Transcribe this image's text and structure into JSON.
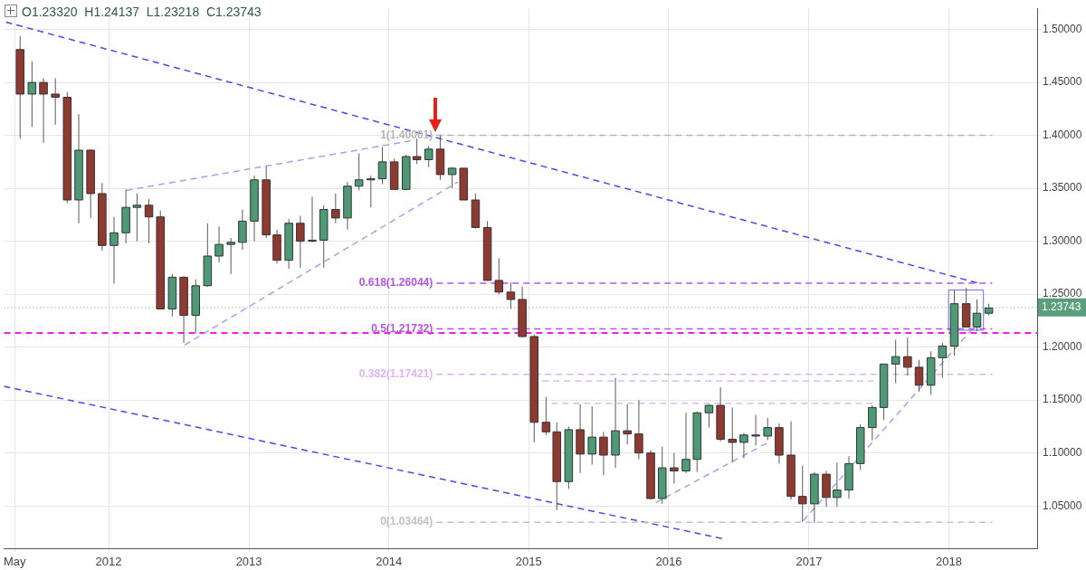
{
  "chart_data": {
    "type": "candlestick",
    "x": [
      "2011-05-15",
      "2011-06-15",
      "2011-07-15",
      "2011-08-15",
      "2011-09-15",
      "2011-10-15",
      "2011-11-15",
      "2011-12-15",
      "2012-01-15",
      "2012-02-15",
      "2012-03-15",
      "2012-04-15",
      "2012-05-15",
      "2012-06-15",
      "2012-07-15",
      "2012-08-15",
      "2012-09-15",
      "2012-10-15",
      "2012-11-15",
      "2012-12-15",
      "2013-01-15",
      "2013-02-15",
      "2013-03-15",
      "2013-04-15",
      "2013-05-15",
      "2013-06-15",
      "2013-07-15",
      "2013-08-15",
      "2013-09-15",
      "2013-10-15",
      "2013-11-15",
      "2013-12-15",
      "2014-01-15",
      "2014-02-15",
      "2014-03-15",
      "2014-04-15",
      "2014-05-15",
      "2014-06-15",
      "2014-07-15",
      "2014-08-15",
      "2014-09-15",
      "2014-10-15",
      "2014-11-15",
      "2014-12-15",
      "2015-01-15",
      "2015-02-15",
      "2015-03-15",
      "2015-04-15",
      "2015-05-15",
      "2015-06-15",
      "2015-07-15",
      "2015-08-15",
      "2015-09-15",
      "2015-10-15",
      "2015-11-15",
      "2015-12-15",
      "2016-01-15",
      "2016-02-15",
      "2016-03-15",
      "2016-04-15",
      "2016-05-15",
      "2016-06-15",
      "2016-07-15",
      "2016-08-15",
      "2016-09-15",
      "2016-10-15",
      "2016-11-15",
      "2016-12-15",
      "2017-01-15",
      "2017-02-15",
      "2017-03-15",
      "2017-04-15",
      "2017-05-15",
      "2017-06-15",
      "2017-07-15",
      "2017-08-15",
      "2017-09-15",
      "2017-10-15",
      "2017-11-15",
      "2017-12-15",
      "2018-01-15",
      "2018-02-15",
      "2018-03-15",
      "2018-04-15"
    ],
    "ohlc": [
      [
        1.481,
        1.494,
        1.397,
        1.439
      ],
      [
        1.439,
        1.47,
        1.408,
        1.45
      ],
      [
        1.45,
        1.454,
        1.393,
        1.439
      ],
      [
        1.439,
        1.454,
        1.41,
        1.436
      ],
      [
        1.436,
        1.441,
        1.336,
        1.339
      ],
      [
        1.339,
        1.42,
        1.317,
        1.386
      ],
      [
        1.386,
        1.387,
        1.322,
        1.345
      ],
      [
        1.345,
        1.355,
        1.291,
        1.296
      ],
      [
        1.296,
        1.323,
        1.26,
        1.308
      ],
      [
        1.308,
        1.349,
        1.298,
        1.332
      ],
      [
        1.332,
        1.345,
        1.3,
        1.334
      ],
      [
        1.334,
        1.34,
        1.298,
        1.323
      ],
      [
        1.323,
        1.329,
        1.236,
        1.236
      ],
      [
        1.236,
        1.269,
        1.229,
        1.266
      ],
      [
        1.266,
        1.267,
        1.204,
        1.23
      ],
      [
        1.23,
        1.264,
        1.213,
        1.258
      ],
      [
        1.258,
        1.317,
        1.257,
        1.286
      ],
      [
        1.286,
        1.314,
        1.28,
        1.297
      ],
      [
        1.297,
        1.303,
        1.269,
        1.299
      ],
      [
        1.299,
        1.33,
        1.292,
        1.319
      ],
      [
        1.319,
        1.362,
        1.3,
        1.358
      ],
      [
        1.358,
        1.371,
        1.303,
        1.306
      ],
      [
        1.306,
        1.311,
        1.279,
        1.282
      ],
      [
        1.282,
        1.321,
        1.274,
        1.317
      ],
      [
        1.317,
        1.324,
        1.275,
        1.3
      ],
      [
        1.3,
        1.342,
        1.299,
        1.301
      ],
      [
        1.301,
        1.334,
        1.275,
        1.33
      ],
      [
        1.33,
        1.345,
        1.317,
        1.322
      ],
      [
        1.322,
        1.356,
        1.311,
        1.352
      ],
      [
        1.352,
        1.383,
        1.348,
        1.358
      ],
      [
        1.358,
        1.362,
        1.332,
        1.359
      ],
      [
        1.359,
        1.389,
        1.354,
        1.375
      ],
      [
        1.375,
        1.378,
        1.349,
        1.349
      ],
      [
        1.349,
        1.382,
        1.348,
        1.38
      ],
      [
        1.38,
        1.397,
        1.373,
        1.377
      ],
      [
        1.377,
        1.39,
        1.37,
        1.387
      ],
      [
        1.387,
        1.4,
        1.358,
        1.363
      ],
      [
        1.363,
        1.37,
        1.35,
        1.369
      ],
      [
        1.369,
        1.369,
        1.339,
        1.339
      ],
      [
        1.339,
        1.345,
        1.312,
        1.313
      ],
      [
        1.313,
        1.319,
        1.263,
        1.263
      ],
      [
        1.263,
        1.284,
        1.25,
        1.252
      ],
      [
        1.252,
        1.261,
        1.236,
        1.245
      ],
      [
        1.245,
        1.257,
        1.209,
        1.21
      ],
      [
        1.21,
        1.212,
        1.11,
        1.129
      ],
      [
        1.129,
        1.153,
        1.117,
        1.12
      ],
      [
        1.12,
        1.129,
        1.046,
        1.073
      ],
      [
        1.073,
        1.125,
        1.066,
        1.122
      ],
      [
        1.122,
        1.146,
        1.081,
        1.099
      ],
      [
        1.099,
        1.144,
        1.089,
        1.115
      ],
      [
        1.115,
        1.12,
        1.079,
        1.098
      ],
      [
        1.098,
        1.171,
        1.086,
        1.121
      ],
      [
        1.121,
        1.146,
        1.108,
        1.118
      ],
      [
        1.118,
        1.15,
        1.094,
        1.1
      ],
      [
        1.1,
        1.103,
        1.056,
        1.057
      ],
      [
        1.057,
        1.106,
        1.052,
        1.086
      ],
      [
        1.086,
        1.1,
        1.071,
        1.083
      ],
      [
        1.083,
        1.138,
        1.081,
        1.094
      ],
      [
        1.094,
        1.139,
        1.082,
        1.138
      ],
      [
        1.138,
        1.146,
        1.124,
        1.145
      ],
      [
        1.145,
        1.162,
        1.111,
        1.113
      ],
      [
        1.113,
        1.143,
        1.091,
        1.11
      ],
      [
        1.11,
        1.119,
        1.095,
        1.117
      ],
      [
        1.117,
        1.136,
        1.107,
        1.116
      ],
      [
        1.116,
        1.133,
        1.112,
        1.124
      ],
      [
        1.124,
        1.128,
        1.09,
        1.098
      ],
      [
        1.098,
        1.13,
        1.056,
        1.059
      ],
      [
        1.059,
        1.088,
        1.035,
        1.052
      ],
      [
        1.052,
        1.082,
        1.034,
        1.08
      ],
      [
        1.08,
        1.083,
        1.049,
        1.058
      ],
      [
        1.058,
        1.091,
        1.049,
        1.065
      ],
      [
        1.065,
        1.097,
        1.057,
        1.09
      ],
      [
        1.09,
        1.127,
        1.084,
        1.124
      ],
      [
        1.124,
        1.145,
        1.112,
        1.143
      ],
      [
        1.143,
        1.184,
        1.131,
        1.184
      ],
      [
        1.184,
        1.207,
        1.166,
        1.191
      ],
      [
        1.191,
        1.209,
        1.173,
        1.181
      ],
      [
        1.181,
        1.188,
        1.158,
        1.164
      ],
      [
        1.164,
        1.196,
        1.155,
        1.19
      ],
      [
        1.19,
        1.204,
        1.171,
        1.201
      ],
      [
        1.201,
        1.254,
        1.192,
        1.241
      ],
      [
        1.241,
        1.256,
        1.219,
        1.219
      ],
      [
        1.219,
        1.245,
        1.215,
        1.232
      ],
      [
        1.232,
        1.241,
        1.23,
        1.237
      ]
    ],
    "colors": [
      "#8e3a31",
      "#4f9a76",
      "#8e3a31",
      "#8e3a31",
      "#8e3a31",
      "#4f9a76",
      "#8e3a31",
      "#8e3a31",
      "#4f9a76",
      "#4f9a76",
      "#4f9a76",
      "#8e3a31",
      "#8e3a31",
      "#4f9a76",
      "#8e3a31",
      "#4f9a76",
      "#4f9a76",
      "#4f9a76",
      "#4f9a76",
      "#4f9a76",
      "#4f9a76",
      "#8e3a31",
      "#8e3a31",
      "#4f9a76",
      "#8e3a31",
      "#4f9a76",
      "#4f9a76",
      "#8e3a31",
      "#4f9a76",
      "#4f9a76",
      "#4f9a76",
      "#4f9a76",
      "#8e3a31",
      "#4f9a76",
      "#8e3a31",
      "#4f9a76",
      "#8e3a31",
      "#4f9a76",
      "#8e3a31",
      "#8e3a31",
      "#8e3a31",
      "#8e3a31",
      "#8e3a31",
      "#8e3a31",
      "#8e3a31",
      "#8e3a31",
      "#8e3a31",
      "#4f9a76",
      "#8e3a31",
      "#4f9a76",
      "#8e3a31",
      "#4f9a76",
      "#8e3a31",
      "#8e3a31",
      "#8e3a31",
      "#4f9a76",
      "#8e3a31",
      "#4f9a76",
      "#4f9a76",
      "#4f9a76",
      "#8e3a31",
      "#8e3a31",
      "#4f9a76",
      "#8e3a31",
      "#4f9a76",
      "#8e3a31",
      "#8e3a31",
      "#8e3a31",
      "#4f9a76",
      "#8e3a31",
      "#4f9a76",
      "#4f9a76",
      "#4f9a76",
      "#4f9a76",
      "#4f9a76",
      "#4f9a76",
      "#8e3a31",
      "#8e3a31",
      "#4f9a76",
      "#4f9a76",
      "#4f9a76",
      "#8e3a31",
      "#4f9a76",
      "#4f9a76"
    ],
    "series": [
      {
        "type": "line",
        "color": "#4a4ae8",
        "line_style": "dashed",
        "x": [
          "2011-04-08",
          "2018-03-23"
        ],
        "values": [
          1.507,
          1.26
        ]
      },
      {
        "type": "line",
        "color": "#4a4ae8",
        "line_style": "dashed",
        "x": [
          "2011-04-03",
          "2016-05-21"
        ],
        "values": [
          1.163,
          1.019
        ]
      },
      {
        "type": "line",
        "color": "#a3a3f2",
        "line_style": "dashed",
        "x": [
          "2012-02-16",
          "2014-03-01"
        ],
        "values": [
          1.348,
          1.395
        ]
      },
      {
        "type": "line",
        "color": "#a3a3f2",
        "line_style": "dashed",
        "x": [
          "2012-07-17",
          "2014-06-30"
        ],
        "values": [
          1.202,
          1.356
        ]
      },
      {
        "type": "line",
        "color": "#a3a3f2",
        "line_style": "dashed",
        "x": [
          "2015-11-28",
          "2016-09-16"
        ],
        "values": [
          1.053,
          1.11
        ]
      },
      {
        "type": "line",
        "color": "#a3a3f2",
        "line_style": "dashed",
        "x": [
          "2016-12-17",
          "2018-03-05"
        ],
        "values": [
          1.036,
          1.218
        ]
      },
      {
        "type": "line",
        "color": "#c5c5f5",
        "line_style": "dashed",
        "x": [
          "2015-02-05",
          "2017-06-18"
        ],
        "values": [
          1.168,
          1.168
        ]
      },
      {
        "type": "line",
        "color": "#c5c5f5",
        "line_style": "dashed",
        "x": [
          "2015-03-01",
          "2017-06-18"
        ],
        "values": [
          1.147,
          1.147
        ]
      },
      {
        "type": "line",
        "color": "#6e6ee6",
        "line_style": "solid",
        "x": [
          "2017-12-31",
          "2018-04-01"
        ],
        "values": [
          1.254,
          1.254
        ]
      },
      {
        "type": "line",
        "color": "#6e6ee6",
        "line_style": "solid",
        "x": [
          "2017-12-31",
          "2018-04-01"
        ],
        "values": [
          1.216,
          1.216
        ]
      },
      {
        "type": "line",
        "color": "#6e6ee6",
        "line_style": "solid",
        "x": [
          "2017-12-31",
          "2017-12-31"
        ],
        "values": [
          1.216,
          1.254
        ]
      },
      {
        "type": "line",
        "color": "#6e6ee6",
        "line_style": "solid",
        "x": [
          "2018-04-01",
          "2018-04-01"
        ],
        "values": [
          1.216,
          1.254
        ]
      },
      {
        "type": "line",
        "name": "1(1.40001)",
        "color": "#b5b5b5",
        "line_style": "dashed",
        "x": [
          "2014-05-05",
          "2018-04-24"
        ],
        "values": [
          1.40001,
          1.40001
        ]
      },
      {
        "type": "line",
        "name": "0.618(1.26044)",
        "color": "#b455e6",
        "line_style": "dashed",
        "x": [
          "2014-05-05",
          "2018-04-24"
        ],
        "values": [
          1.26044,
          1.26044
        ]
      },
      {
        "type": "line",
        "name": "0.5(1.21732)",
        "color": "#b455e6",
        "line_style": "dashed",
        "x": [
          "2014-05-05",
          "2018-04-24"
        ],
        "values": [
          1.21732,
          1.21732
        ]
      },
      {
        "type": "line",
        "name": "0.382(1.17421)",
        "color": "#e2b4f2",
        "line_style": "dashed",
        "x": [
          "2014-05-05",
          "2018-04-24"
        ],
        "values": [
          1.17421,
          1.17421
        ]
      },
      {
        "type": "line",
        "name": "0(1.03464)",
        "color": "#c2c2c2",
        "line_style": "dashed",
        "x": [
          "2014-05-05",
          "2018-04-24"
        ],
        "values": [
          1.03464,
          1.03464
        ]
      }
    ],
    "ref_lines": [
      {
        "axis": "y",
        "value": 1.2134,
        "color": "#f01ee6",
        "line_style": "dashed"
      },
      {
        "axis": "y",
        "value": 1.23743,
        "label": "1.23743",
        "color": "#5a9e7c",
        "line_style": "dotted"
      }
    ],
    "xlim": [
      "2011-04-03",
      "2018-08-19"
    ],
    "ylim": [
      1.01,
      1.52
    ],
    "xticks": [
      {
        "value": "2011-05",
        "label": "May"
      },
      "2012",
      "2013",
      "2014",
      "2015",
      "2016",
      "2017",
      "2018"
    ],
    "yticks": [
      {
        "value": 1.05,
        "label": "1.05000"
      },
      {
        "value": 1.1,
        "label": "1.10000"
      },
      {
        "value": 1.15,
        "label": "1.15000"
      },
      {
        "value": 1.2,
        "label": "1.20000"
      },
      {
        "value": 1.25,
        "label": "1.25000"
      },
      {
        "value": 1.3,
        "label": "1.30000"
      },
      {
        "value": 1.35,
        "label": "1.35000"
      },
      {
        "value": 1.4,
        "label": "1.40000"
      },
      {
        "value": 1.45,
        "label": "1.45000"
      },
      {
        "value": 1.5,
        "label": "1.50000"
      }
    ],
    "grid": true,
    "annotations": [
      "O1.23320  H1.24137  L1.23218  C1.23743"
    ]
  }
}
